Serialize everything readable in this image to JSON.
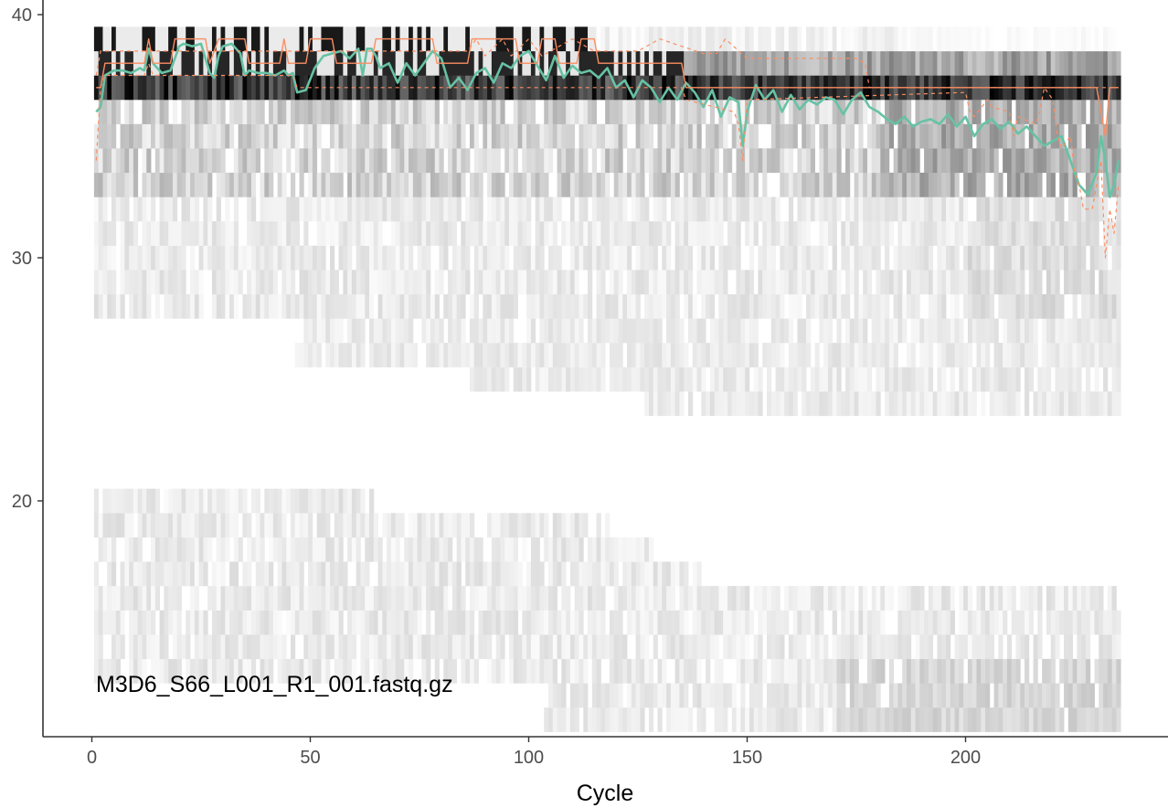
{
  "chart_data": {
    "type": "heatmap",
    "title": "",
    "xlabel": "Cycle",
    "ylabel": "",
    "annotation": "M3D6_S66_L001_R1_001.fastq.gz",
    "xlim": [
      -11,
      247
    ],
    "ylim": [
      10,
      40.5
    ],
    "x_ticks": [
      0,
      50,
      100,
      150,
      200
    ],
    "y_ticks": [
      20,
      30,
      40
    ],
    "x_tick_labels": [
      "0",
      "50",
      "100",
      "150",
      "200"
    ],
    "y_tick_labels": [
      "20",
      "30",
      "40"
    ],
    "grid": false,
    "colors": {
      "mean_line": "#66c2a5",
      "quantile_lines": "#fc8d62",
      "heatmap_low": "#ffffff",
      "heatmap_high": "#000000"
    },
    "heatmap": {
      "description_free": true,
      "cycles": [
        1,
        235
      ],
      "quality_scores": [
        11,
        12,
        13,
        14,
        15,
        16,
        17,
        18,
        19,
        20,
        24,
        25,
        26,
        27,
        28,
        29,
        30,
        31,
        32,
        33,
        34,
        35,
        36,
        37,
        38,
        39
      ],
      "anchor_points": [
        {
          "x": 20,
          "y": 37,
          "value": 0.9
        },
        {
          "x": 120,
          "y": 37,
          "value": 0.6
        },
        {
          "x": 160,
          "y": 37,
          "value": 0.7
        },
        {
          "x": 220,
          "y": 37,
          "value": 0.9
        },
        {
          "x": 40,
          "y": 38,
          "value": 0.85
        },
        {
          "x": 150,
          "y": 38,
          "value": 0.35
        },
        {
          "x": 20,
          "y": 39,
          "value": 0.95
        },
        {
          "x": 180,
          "y": 39,
          "value": 0.08
        }
      ]
    },
    "series": [
      {
        "name": "mean",
        "style": "solid",
        "x": [
          1,
          2,
          3,
          5,
          7,
          9,
          11,
          12,
          13,
          14,
          16,
          18,
          20,
          21,
          23,
          25,
          27,
          28,
          29,
          30,
          32,
          34,
          35,
          36,
          38,
          40,
          42,
          44,
          45,
          46,
          47,
          49,
          51,
          53,
          55,
          57,
          59,
          61,
          62,
          63,
          64,
          65,
          66,
          68,
          70,
          72,
          74,
          76,
          78,
          80,
          82,
          84,
          86,
          88,
          90,
          92,
          94,
          96,
          98,
          100,
          102,
          104,
          106,
          108,
          110,
          112,
          114,
          116,
          118,
          120,
          122,
          124,
          126,
          128,
          130,
          132,
          134,
          136,
          138,
          140,
          142,
          144,
          146,
          148,
          149,
          150,
          152,
          154,
          156,
          158,
          160,
          162,
          164,
          166,
          168,
          170,
          172,
          174,
          176,
          178,
          180,
          182,
          184,
          186,
          188,
          190,
          192,
          194,
          196,
          198,
          200,
          202,
          204,
          206,
          208,
          210,
          212,
          214,
          216,
          218,
          220,
          222,
          224,
          226,
          228,
          230,
          231,
          232,
          233,
          234,
          235
        ],
        "y": [
          36.0,
          36.2,
          37.5,
          37.7,
          37.7,
          37.6,
          37.8,
          37.7,
          38.6,
          38.0,
          37.6,
          37.7,
          38.7,
          38.8,
          38.7,
          38.8,
          37.6,
          37.4,
          38.3,
          38.7,
          38.8,
          38.4,
          37.5,
          37.7,
          37.6,
          37.6,
          37.5,
          37.7,
          37.5,
          37.6,
          36.8,
          36.9,
          37.8,
          38.3,
          38.4,
          38.5,
          38.2,
          38.6,
          37.5,
          38.6,
          38.6,
          38.3,
          37.8,
          38.0,
          37.2,
          38.0,
          37.5,
          38.0,
          38.5,
          38.2,
          37.0,
          37.4,
          36.9,
          37.6,
          37.8,
          37.2,
          38.0,
          37.8,
          38.3,
          38.5,
          37.9,
          37.3,
          38.3,
          37.4,
          37.9,
          37.6,
          37.7,
          37.4,
          37.8,
          37.0,
          37.3,
          36.6,
          37.3,
          37.0,
          36.4,
          37.0,
          36.5,
          37.2,
          36.8,
          36.2,
          36.9,
          35.8,
          36.6,
          36.4,
          34.6,
          36.0,
          37.1,
          36.5,
          36.9,
          36.0,
          36.7,
          36.1,
          36.5,
          36.3,
          36.6,
          36.5,
          35.9,
          36.5,
          36.8,
          36.2,
          36.0,
          35.7,
          35.5,
          35.8,
          35.4,
          35.6,
          35.7,
          35.5,
          35.9,
          35.4,
          35.8,
          35.0,
          35.5,
          35.7,
          35.3,
          35.6,
          35.1,
          35.4,
          35.0,
          34.6,
          34.8,
          35.0,
          34.0,
          33.0,
          32.6,
          33.5,
          35.0,
          34.0,
          32.5,
          33.0,
          34.0
        ]
      },
      {
        "name": "median",
        "style": "solid",
        "x": [
          1,
          2,
          3,
          12,
          13,
          14,
          18,
          19,
          26,
          27,
          29,
          35,
          36,
          43,
          44,
          45,
          49,
          50,
          55,
          56,
          64,
          65,
          78,
          79,
          86,
          87,
          97,
          98,
          102,
          103,
          106,
          107,
          111,
          112,
          115,
          116,
          135,
          136,
          230,
          231,
          232,
          233,
          235
        ],
        "y": [
          37,
          37,
          38,
          38,
          39,
          38,
          38,
          39,
          39,
          38,
          39,
          39,
          38,
          38,
          39,
          38,
          38,
          39,
          39,
          38,
          38,
          39,
          39,
          38,
          38,
          39,
          39,
          38,
          38,
          39,
          39,
          38,
          38,
          39,
          39,
          38,
          38,
          37,
          37,
          36,
          35,
          37,
          37
        ]
      },
      {
        "name": "quartile-25",
        "style": "dashed",
        "x": [
          1,
          2,
          3,
          12,
          13,
          14,
          46,
          47,
          135,
          136,
          147,
          148,
          149,
          150,
          200,
          201,
          202,
          205,
          206,
          210,
          211,
          212,
          216,
          217,
          218,
          220,
          221,
          222,
          224,
          225,
          226,
          227,
          229,
          230,
          231,
          232,
          233,
          234,
          235
        ],
        "y": [
          34,
          37,
          37.5,
          37.5,
          38,
          37.5,
          37.5,
          37,
          37,
          36.5,
          36,
          35.5,
          34.0,
          36.5,
          36.8,
          36.0,
          35.8,
          36.5,
          36.2,
          36.0,
          35.0,
          35.8,
          35.5,
          36.0,
          37.0,
          36.5,
          35.0,
          34.5,
          35.0,
          33.5,
          33.0,
          32.0,
          32.0,
          33.0,
          34.0,
          30.0,
          32.0,
          31.0,
          33.0
        ]
      },
      {
        "name": "quartile-75",
        "style": "dashed",
        "x": [
          1,
          2,
          86,
          88,
          90,
          94,
          96,
          100,
          103,
          110,
          115,
          125,
          130,
          140,
          143,
          145,
          150,
          175,
          177,
          178,
          235
        ],
        "y": [
          37.5,
          38.5,
          38.5,
          39,
          38.3,
          39,
          38.3,
          39,
          38.3,
          39,
          38.5,
          38.5,
          39,
          38.4,
          38.4,
          39,
          38.2,
          38.2,
          38.0,
          37.0,
          37.0
        ]
      }
    ]
  }
}
